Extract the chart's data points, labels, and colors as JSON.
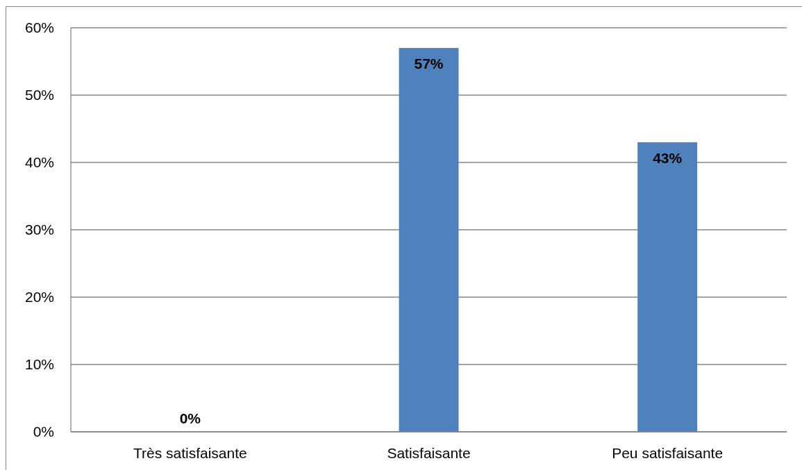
{
  "chart_data": {
    "type": "bar",
    "categories": [
      "Très satisfaisante",
      "Satisfaisante",
      "Peu satisfaisante"
    ],
    "values": [
      0,
      57,
      43
    ],
    "color": "#4f81bd",
    "value_labels": [
      "0%",
      "57%",
      "43%"
    ],
    "ylim": [
      0,
      60
    ],
    "yticks": [
      {
        "value": 0,
        "label": "0%"
      },
      {
        "value": 10,
        "label": "10%"
      },
      {
        "value": 20,
        "label": "20%"
      },
      {
        "value": 30,
        "label": "30%"
      },
      {
        "value": 40,
        "label": "40%"
      },
      {
        "value": 50,
        "label": "50%"
      },
      {
        "value": 60,
        "label": "60%"
      }
    ],
    "grid": "y"
  }
}
